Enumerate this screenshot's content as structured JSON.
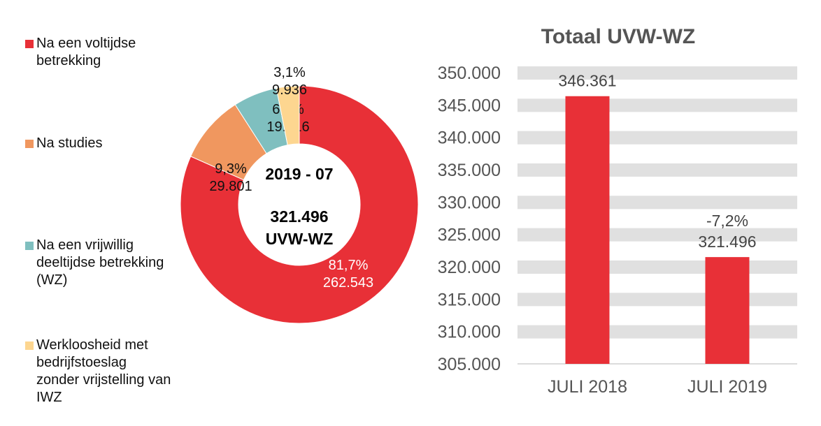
{
  "chart_data": [
    {
      "type": "pie",
      "variant": "donut",
      "center_text": {
        "period": "2019 - 07",
        "total": "321.496",
        "unit": "UVW-WZ"
      },
      "legend_position": "left",
      "slices": [
        {
          "label": "Na een voltijdse betrekking",
          "percent_label": "81,7%",
          "value_label": "262.543",
          "value": 262543,
          "percent": 81.7,
          "color": "#E83037"
        },
        {
          "label": "Na studies",
          "percent_label": "9,3%",
          "value_label": "29.801",
          "value": 29801,
          "percent": 9.3,
          "color": "#F0975F"
        },
        {
          "label": "Na een vrijwillig deeltijdse betrekking (WZ)",
          "percent_label": "6,0%",
          "value_label": "19.216",
          "value": 19216,
          "percent": 6.0,
          "color": "#7FBFBF"
        },
        {
          "label": "Werkloosheid met bedrijfstoeslag zonder vrijstelling van IWZ",
          "percent_label": "3,1%",
          "value_label": "9.936",
          "value": 9936,
          "percent": 3.1,
          "color": "#FDD690"
        }
      ]
    },
    {
      "type": "bar",
      "title": "Totaal UVW-WZ",
      "categories": [
        "JULI 2018",
        "JULI 2019"
      ],
      "values": [
        346361,
        321496
      ],
      "data_labels": [
        "346.361",
        "-7,2%\n321.496"
      ],
      "ylim": [
        305000,
        350000
      ],
      "yticks": [
        350000,
        345000,
        340000,
        335000,
        330000,
        325000,
        320000,
        315000,
        310000,
        305000
      ],
      "ytick_labels": [
        "350.000",
        "345.000",
        "340.000",
        "335.000",
        "330.000",
        "325.000",
        "320.000",
        "315.000",
        "310.000",
        "305.000"
      ],
      "grid": true,
      "bar_color": "#E83037",
      "grid_color": "#E0E0E0"
    }
  ]
}
